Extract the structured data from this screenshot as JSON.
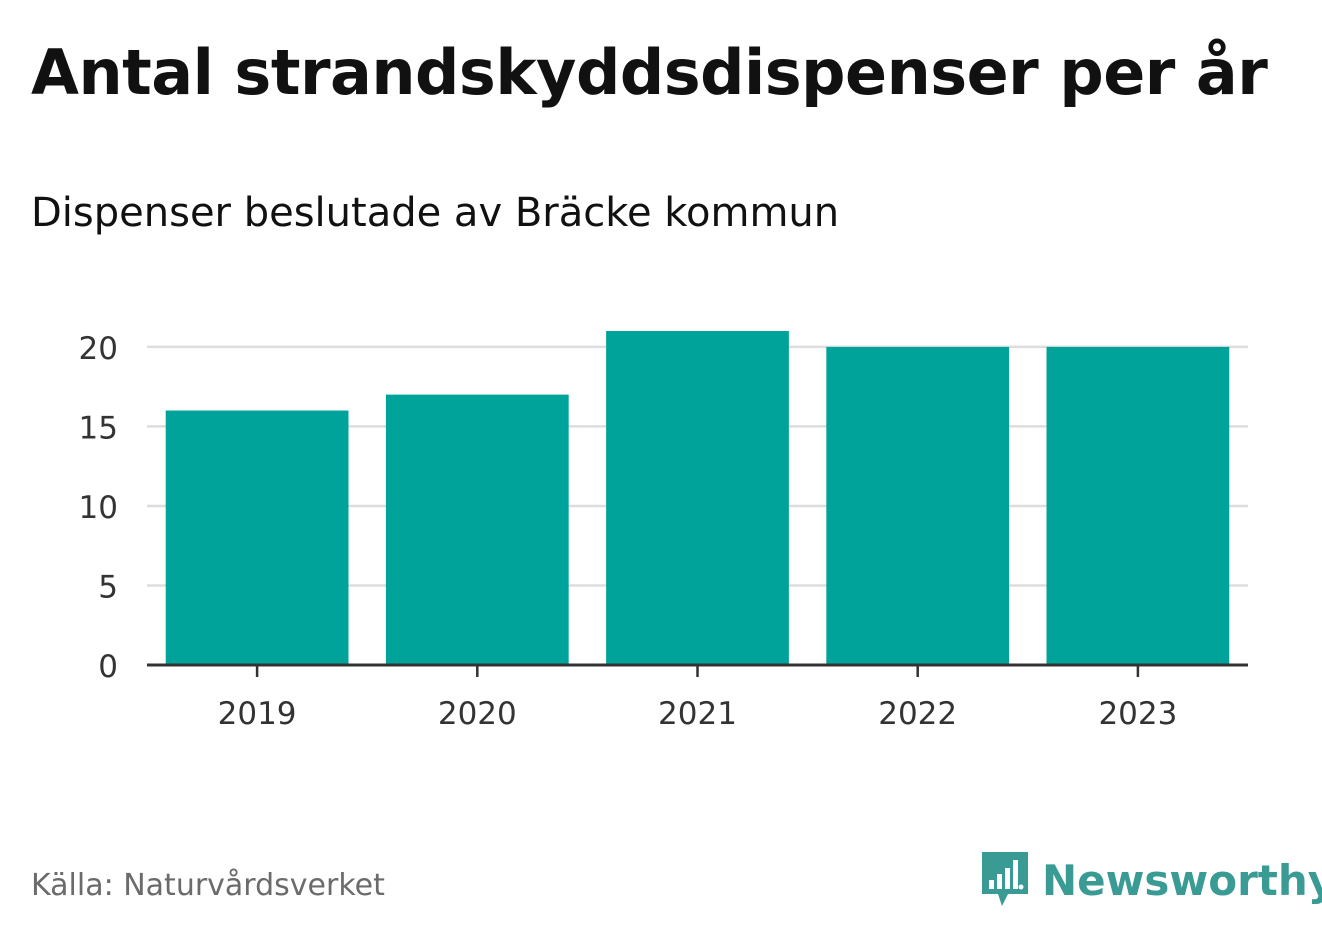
{
  "header": {
    "title": "Antal strandskyddsdispenser per år",
    "subtitle": "Dispenser beslutade av Bräcke kommun"
  },
  "footer": {
    "source": "Källa: Naturvårdsverket",
    "brand": "Newsworthy",
    "brand_icon": "bar-chart-speech-bubble-icon"
  },
  "colors": {
    "bar": "#00a39a",
    "grid": "#dddddd",
    "axis": "#333333",
    "brand": "#3a9a94"
  },
  "chart_data": {
    "type": "bar",
    "title": "Antal strandskyddsdispenser per år",
    "subtitle": "Dispenser beslutade av Bräcke kommun",
    "xlabel": "",
    "ylabel": "",
    "categories": [
      "2019",
      "2020",
      "2021",
      "2022",
      "2023"
    ],
    "values": [
      16,
      17,
      21,
      20,
      20
    ],
    "ylim": [
      0,
      21
    ],
    "yticks": [
      0,
      5,
      10,
      15,
      20
    ],
    "grid": true,
    "legend": "none"
  }
}
